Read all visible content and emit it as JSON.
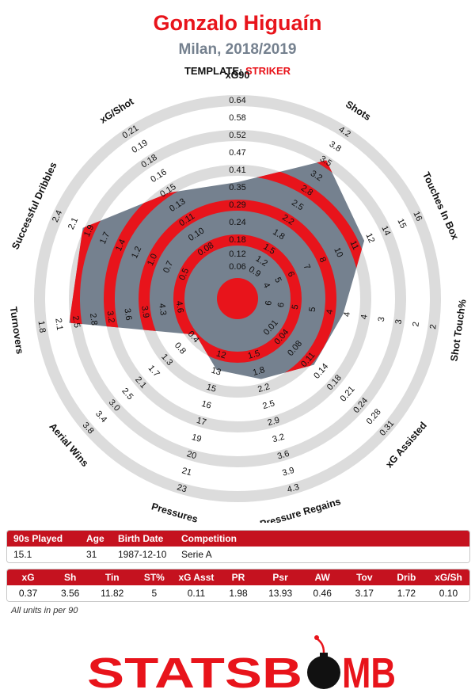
{
  "header": {
    "title": "Gonzalo Higuaín",
    "subtitle": "Milan, 2018/2019",
    "template_label": "TEMPLATE:",
    "template_value": "STRIKER"
  },
  "colors": {
    "accent": "#e8141b",
    "slate": "#75818f",
    "ring": "#dcdcdc",
    "table_header": "#c5121f"
  },
  "chart_data": {
    "type": "radar",
    "metrics": [
      {
        "name": "xG90",
        "ticks": [
          "0.64",
          "0.58",
          "0.52",
          "0.47",
          "0.41",
          "0.35",
          "0.29",
          "0.24",
          "0.18",
          "0.12",
          "0.06"
        ],
        "value": 0.37
      },
      {
        "name": "Shots",
        "ticks": [
          "4.2",
          "3.8",
          "3.5",
          "3.2",
          "2.8",
          "2.5",
          "2.2",
          "1.8",
          "1.5",
          "1.2",
          "0.9"
        ],
        "value": 3.56
      },
      {
        "name": "Touches In Box",
        "ticks": [
          "16",
          "15",
          "14",
          "12",
          "11",
          "10",
          "8",
          "7",
          "6",
          "5",
          "4"
        ],
        "value": 11.82
      },
      {
        "name": "Shot Touch%",
        "ticks": [
          "2",
          "2",
          "3",
          "3",
          "4",
          "4",
          "4",
          "5",
          "5",
          "6",
          "6"
        ],
        "value": 5
      },
      {
        "name": "xG Assisted",
        "ticks": [
          "0.31",
          "0.28",
          "0.24",
          "0.21",
          "0.18",
          "0.14",
          "0.11",
          "0.08",
          "0.04",
          "0.01",
          ""
        ],
        "value": 0.11
      },
      {
        "name": "Pressure Regains",
        "ticks": [
          "4.3",
          "3.9",
          "3.6",
          "3.2",
          "2.9",
          "2.5",
          "2.2",
          "1.8",
          "1.5",
          "",
          ""
        ],
        "value": 1.98
      },
      {
        "name": "Pressures",
        "ticks": [
          "23",
          "21",
          "20",
          "19",
          "17",
          "16",
          "15",
          "13",
          "12",
          "",
          ""
        ],
        "value": 13.93
      },
      {
        "name": "Aerial Wins",
        "ticks": [
          "3.8",
          "3.4",
          "3.0",
          "2.5",
          "2.1",
          "1.7",
          "1.3",
          "0.8",
          "0.4",
          "",
          ""
        ],
        "value": 0.46
      },
      {
        "name": "Turnovers",
        "ticks": [
          "1.8",
          "2.1",
          "2.5",
          "2.8",
          "3.2",
          "3.6",
          "3.9",
          "4.3",
          "4.6",
          "",
          ""
        ],
        "value": 3.17
      },
      {
        "name": "Successful Dribbles",
        "ticks": [
          "2.4",
          "2.1",
          "1.9",
          "1.7",
          "1.4",
          "1.2",
          "1.0",
          "0.7",
          "0.5",
          "",
          ""
        ],
        "value": 1.72
      },
      {
        "name": "xG/Shot",
        "ticks": [
          "0.21",
          "0.19",
          "0.18",
          "0.16",
          "0.15",
          "0.13",
          "0.11",
          "0.10",
          "0.08",
          "",
          ""
        ],
        "value": 0.1
      }
    ],
    "value_fractions": [
      0.5,
      0.75,
      0.62,
      0.45,
      0.42,
      0.33,
      0.28,
      0.18,
      0.78,
      0.78,
      0.55
    ]
  },
  "info_table": {
    "headers": [
      "90s Played",
      "Age",
      "Birth Date",
      "Competition"
    ],
    "values": [
      "15.1",
      "31",
      "1987-12-10",
      "Serie A"
    ]
  },
  "stats_table": {
    "headers": [
      "xG",
      "Sh",
      "Tin",
      "ST%",
      "xG Asst",
      "PR",
      "Psr",
      "AW",
      "Tov",
      "Drib",
      "xG/Sh"
    ],
    "values": [
      "0.37",
      "3.56",
      "11.82",
      "5",
      "0.11",
      "1.98",
      "13.93",
      "0.46",
      "3.17",
      "1.72",
      "0.10"
    ]
  },
  "footnote": "All units in per 90",
  "logo": {
    "part1": "STATSB",
    "part2": "MB"
  }
}
